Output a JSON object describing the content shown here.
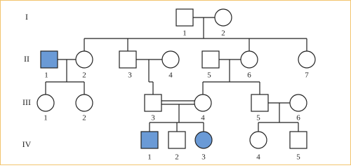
{
  "generations": [
    {
      "label": "I",
      "members": [
        "1",
        "2"
      ]
    },
    {
      "label": "II",
      "members": [
        "1",
        "2",
        "3",
        "4",
        "5",
        "6",
        "7"
      ]
    },
    {
      "label": "III",
      "members": [
        "1",
        "2",
        "3",
        "4",
        "5",
        "6"
      ]
    },
    {
      "label": "IV",
      "members": [
        "1",
        "2",
        "3",
        "4",
        "5"
      ]
    }
  ]
}
